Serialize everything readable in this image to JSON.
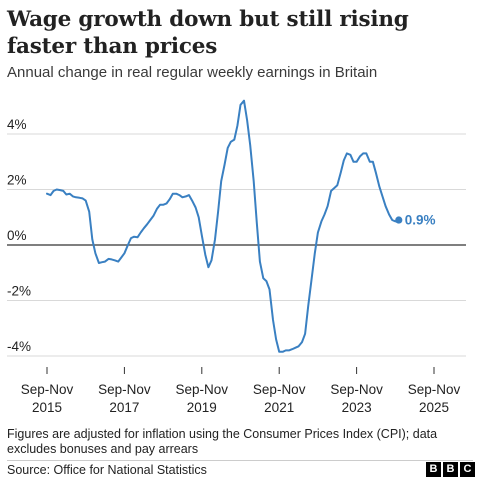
{
  "header": {
    "title": "Wage growth down but still rising faster than prices",
    "subtitle": "Annual change in real regular weekly earnings in Britain"
  },
  "footer": {
    "note": "Figures are adjusted for inflation using the Consumer Prices Index (CPI); data excludes bonuses and pay arrears",
    "source": "Source: Office for National Statistics",
    "logo": [
      "B",
      "B",
      "C"
    ]
  },
  "colors": {
    "line": "#3a80c2",
    "gridline": "#d9d9d9",
    "zero_line": "#333333"
  },
  "chart_data": {
    "type": "line",
    "x_unit": "rolling three-month period ending (year, month)",
    "x_ticks": [
      {
        "x": 2015.83,
        "line1": "Sep-Nov",
        "line2": "2015"
      },
      {
        "x": 2017.83,
        "line1": "Sep-Nov",
        "line2": "2017"
      },
      {
        "x": 2019.83,
        "line1": "Sep-Nov",
        "line2": "2019"
      },
      {
        "x": 2021.83,
        "line1": "Sep-Nov",
        "line2": "2021"
      },
      {
        "x": 2023.83,
        "line1": "Sep-Nov",
        "line2": "2023"
      },
      {
        "x": 2025.83,
        "line1": "Sep-Nov",
        "line2": "2025"
      }
    ],
    "y_ticks": [
      {
        "value": 4,
        "label": "4%"
      },
      {
        "value": 2,
        "label": "2%"
      },
      {
        "value": 0,
        "label": "0%"
      },
      {
        "value": -2,
        "label": "-2%"
      },
      {
        "value": -4,
        "label": "-4%"
      }
    ],
    "xlim": [
      2015.83,
      2025.83
    ],
    "ylim": [
      -4.3,
      5.5
    ],
    "grid": true,
    "end_label": "0.9%",
    "series": [
      {
        "values": [
          [
            2015.83,
            1.85
          ],
          [
            2015.92,
            1.8
          ],
          [
            2016.0,
            1.95
          ],
          [
            2016.08,
            2.0
          ],
          [
            2016.17,
            1.98
          ],
          [
            2016.25,
            1.95
          ],
          [
            2016.33,
            1.82
          ],
          [
            2016.42,
            1.85
          ],
          [
            2016.5,
            1.75
          ],
          [
            2016.58,
            1.72
          ],
          [
            2016.67,
            1.7
          ],
          [
            2016.75,
            1.68
          ],
          [
            2016.83,
            1.6
          ],
          [
            2016.92,
            1.2
          ],
          [
            2017.0,
            0.2
          ],
          [
            2017.08,
            -0.3
          ],
          [
            2017.17,
            -0.65
          ],
          [
            2017.25,
            -0.62
          ],
          [
            2017.33,
            -0.6
          ],
          [
            2017.42,
            -0.5
          ],
          [
            2017.5,
            -0.52
          ],
          [
            2017.58,
            -0.55
          ],
          [
            2017.67,
            -0.6
          ],
          [
            2017.75,
            -0.45
          ],
          [
            2017.83,
            -0.3
          ],
          [
            2017.92,
            0.0
          ],
          [
            2018.0,
            0.25
          ],
          [
            2018.08,
            0.3
          ],
          [
            2018.17,
            0.28
          ],
          [
            2018.25,
            0.45
          ],
          [
            2018.33,
            0.6
          ],
          [
            2018.42,
            0.75
          ],
          [
            2018.5,
            0.9
          ],
          [
            2018.58,
            1.05
          ],
          [
            2018.67,
            1.3
          ],
          [
            2018.75,
            1.45
          ],
          [
            2018.83,
            1.45
          ],
          [
            2018.92,
            1.5
          ],
          [
            2019.0,
            1.65
          ],
          [
            2019.08,
            1.85
          ],
          [
            2019.17,
            1.85
          ],
          [
            2019.25,
            1.8
          ],
          [
            2019.33,
            1.72
          ],
          [
            2019.42,
            1.75
          ],
          [
            2019.5,
            1.8
          ],
          [
            2019.58,
            1.6
          ],
          [
            2019.67,
            1.35
          ],
          [
            2019.75,
            1.0
          ],
          [
            2019.83,
            0.35
          ],
          [
            2019.92,
            -0.35
          ],
          [
            2020.0,
            -0.8
          ],
          [
            2020.08,
            -0.55
          ],
          [
            2020.17,
            0.2
          ],
          [
            2020.25,
            1.2
          ],
          [
            2020.33,
            2.3
          ],
          [
            2020.42,
            2.9
          ],
          [
            2020.5,
            3.5
          ],
          [
            2020.58,
            3.72
          ],
          [
            2020.67,
            3.8
          ],
          [
            2020.75,
            4.3
          ],
          [
            2020.83,
            5.05
          ],
          [
            2020.92,
            5.2
          ],
          [
            2021.0,
            4.5
          ],
          [
            2021.08,
            3.6
          ],
          [
            2021.17,
            2.3
          ],
          [
            2021.25,
            0.8
          ],
          [
            2021.33,
            -0.6
          ],
          [
            2021.42,
            -1.2
          ],
          [
            2021.5,
            -1.3
          ],
          [
            2021.58,
            -1.6
          ],
          [
            2021.67,
            -2.7
          ],
          [
            2021.75,
            -3.4
          ],
          [
            2021.83,
            -3.85
          ],
          [
            2021.92,
            -3.85
          ],
          [
            2022.0,
            -3.8
          ],
          [
            2022.08,
            -3.8
          ],
          [
            2022.17,
            -3.75
          ],
          [
            2022.25,
            -3.7
          ],
          [
            2022.33,
            -3.65
          ],
          [
            2022.42,
            -3.5
          ],
          [
            2022.5,
            -3.2
          ],
          [
            2022.58,
            -2.2
          ],
          [
            2022.67,
            -1.2
          ],
          [
            2022.75,
            -0.3
          ],
          [
            2022.83,
            0.45
          ],
          [
            2022.92,
            0.85
          ],
          [
            2023.0,
            1.1
          ],
          [
            2023.08,
            1.4
          ],
          [
            2023.17,
            1.95
          ],
          [
            2023.25,
            2.05
          ],
          [
            2023.33,
            2.15
          ],
          [
            2023.42,
            2.6
          ],
          [
            2023.5,
            3.05
          ],
          [
            2023.58,
            3.3
          ],
          [
            2023.67,
            3.25
          ],
          [
            2023.75,
            3.0
          ],
          [
            2023.83,
            3.0
          ],
          [
            2023.92,
            3.2
          ],
          [
            2024.0,
            3.3
          ],
          [
            2024.08,
            3.3
          ],
          [
            2024.17,
            3.0
          ],
          [
            2024.25,
            3.0
          ],
          [
            2024.33,
            2.6
          ],
          [
            2024.42,
            2.1
          ],
          [
            2024.5,
            1.75
          ],
          [
            2024.58,
            1.4
          ],
          [
            2024.67,
            1.1
          ],
          [
            2024.75,
            0.9
          ],
          [
            2024.83,
            0.85
          ],
          [
            2024.92,
            0.9
          ]
        ]
      }
    ]
  }
}
